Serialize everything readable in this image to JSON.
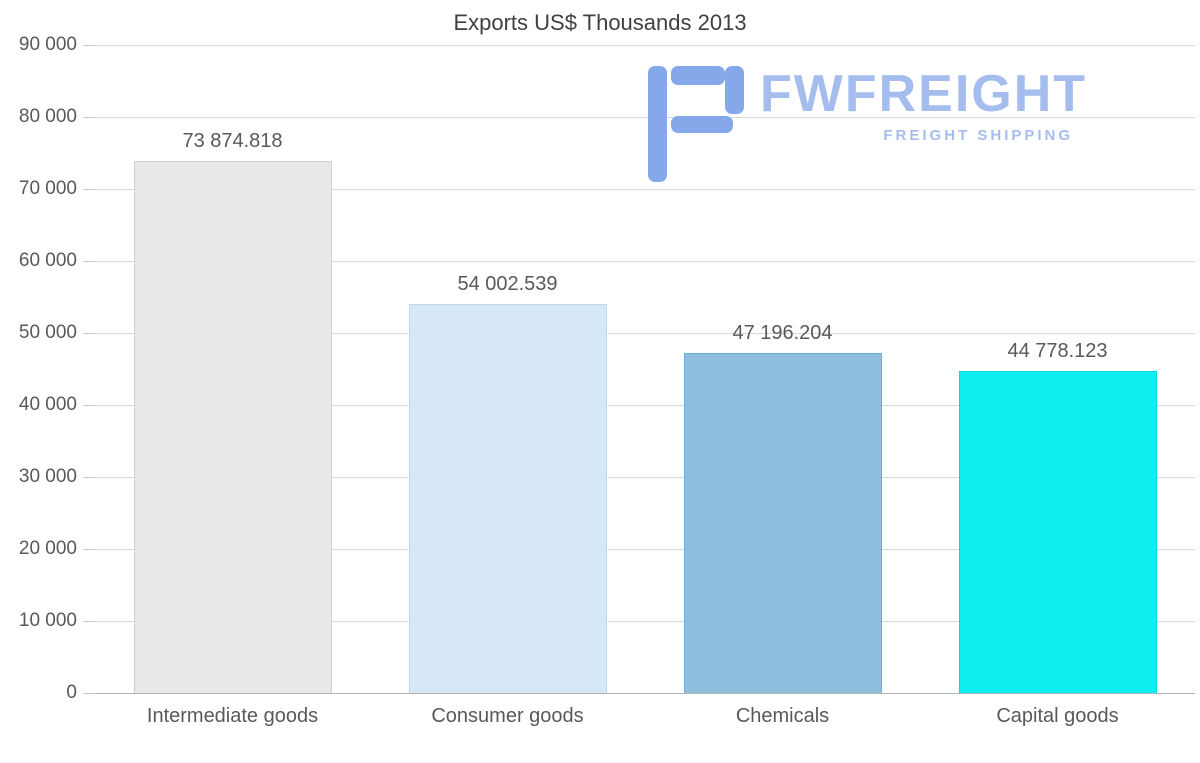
{
  "title": "Exports US$ Thousands 2013",
  "watermark": {
    "name": "FWFREIGHT",
    "tagline": "FREIGHT SHIPPING",
    "mark_color": "#84a8ea",
    "text_color": "#a5bdee"
  },
  "chart_data": {
    "type": "bar",
    "title": "Exports US$ Thousands 2013",
    "categories": [
      "Intermediate goods",
      "Consumer goods",
      "Chemicals",
      "Capital goods"
    ],
    "values": [
      73874.818,
      54002.539,
      47196.204,
      44778.123
    ],
    "value_labels": [
      "73 874.818",
      "54 002.539",
      "47 196.204",
      "44 778.123"
    ],
    "bar_colors": [
      "#e8e8e8",
      "#d6e8f7",
      "#8fbede",
      "#0defef"
    ],
    "bar_border_colors": [
      "#d2d2d2",
      "#bcd9ee",
      "#74aed6",
      "#00d9d9"
    ],
    "xlabel": "",
    "ylabel": "",
    "ylim": [
      0,
      90000
    ],
    "ytick_step": 10000,
    "ytick_labels": [
      "0",
      "10 000",
      "20 000",
      "30 000",
      "40 000",
      "50 000",
      "60 000",
      "70 000",
      "80 000",
      "90 000"
    ],
    "grid": true,
    "legend": false
  }
}
